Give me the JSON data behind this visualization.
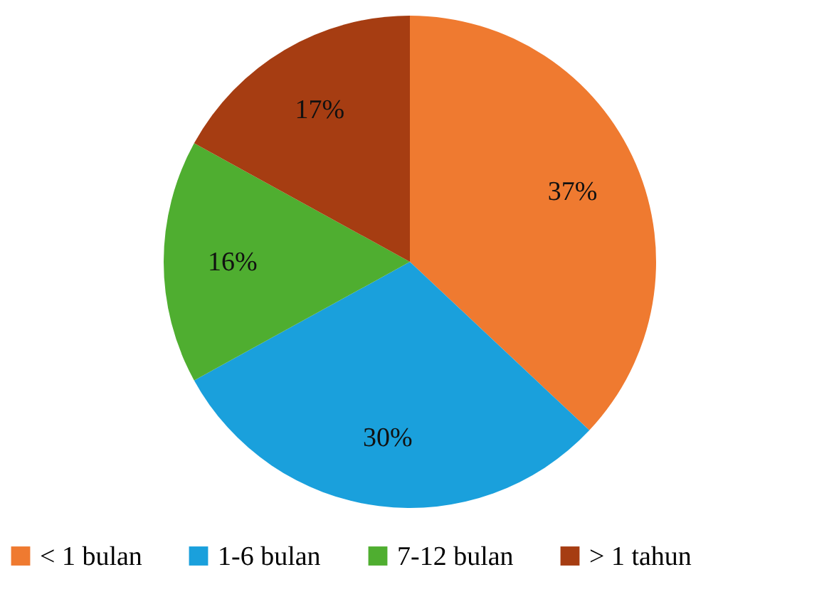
{
  "chart_data": {
    "type": "pie",
    "categories": [
      "< 1 bulan",
      "1-6 bulan",
      "7-12 bulan",
      "> 1 tahun"
    ],
    "values": [
      37,
      30,
      16,
      17
    ],
    "value_labels": [
      "37%",
      "30%",
      "16%",
      "17%"
    ],
    "colors": [
      "#ef7a30",
      "#1aa0dc",
      "#4fae30",
      "#a63d12"
    ],
    "legend": "bottom"
  }
}
